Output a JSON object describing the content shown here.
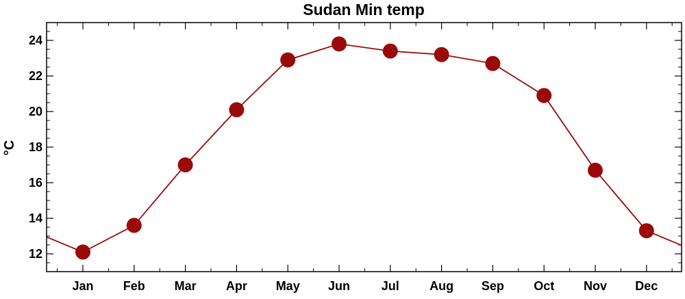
{
  "chart_data": {
    "type": "line",
    "title": "Sudan Min temp",
    "xlabel": "",
    "ylabel": "°C",
    "categories": [
      "Jan",
      "Feb",
      "Mar",
      "Apr",
      "May",
      "Jun",
      "Jul",
      "Aug",
      "Sep",
      "Oct",
      "Nov",
      "Dec"
    ],
    "series": [
      {
        "values": [
          12.1,
          13.6,
          17.0,
          20.1,
          22.9,
          23.8,
          23.4,
          23.2,
          22.7,
          20.9,
          16.7,
          13.3
        ]
      }
    ],
    "ylim": [
      11,
      25
    ],
    "yticks": [
      12,
      14,
      16,
      18,
      20,
      22,
      24
    ],
    "grid": false,
    "legend": "none",
    "colors": {
      "line": "#9b0a0a",
      "marker": "#9b0a0a",
      "axes": "#000000"
    }
  }
}
